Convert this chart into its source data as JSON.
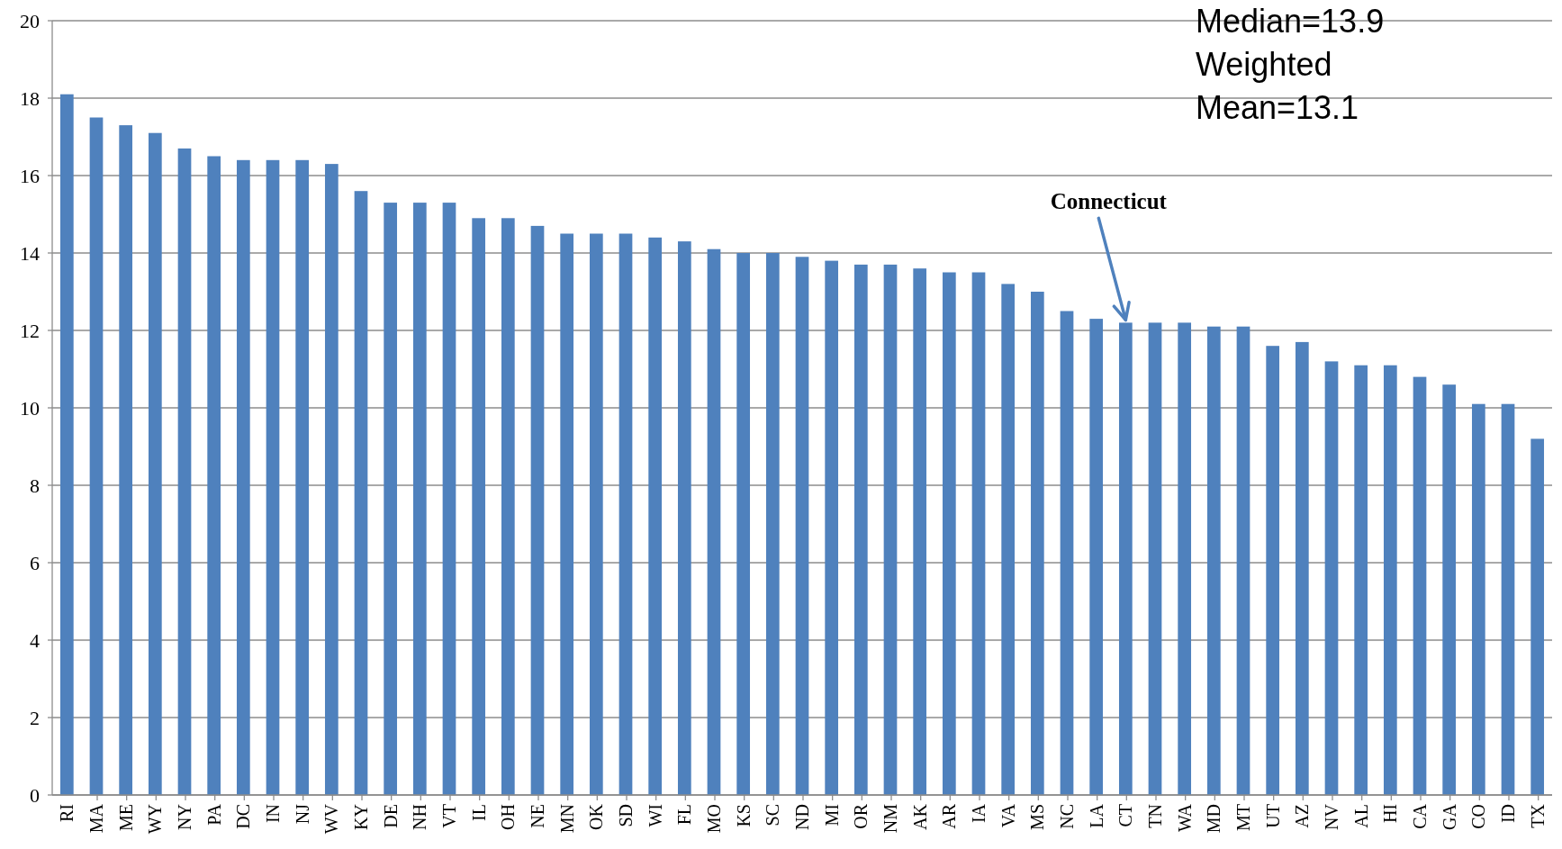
{
  "chart_data": {
    "type": "bar",
    "categories": [
      "RI",
      "MA",
      "ME",
      "WY",
      "NY",
      "PA",
      "DC",
      "IN",
      "NJ",
      "WV",
      "KY",
      "DE",
      "NH",
      "VT",
      "IL",
      "OH",
      "NE",
      "MN",
      "OK",
      "SD",
      "WI",
      "FL",
      "MO",
      "KS",
      "SC",
      "ND",
      "MI",
      "OR",
      "NM",
      "AK",
      "AR",
      "IA",
      "VA",
      "MS",
      "NC",
      "LA",
      "CT",
      "TN",
      "WA",
      "MD",
      "MT",
      "UT",
      "AZ",
      "NV",
      "AL",
      "HI",
      "CA",
      "GA",
      "CO",
      "ID",
      "TX"
    ],
    "values": [
      18.1,
      17.5,
      17.3,
      17.1,
      16.7,
      16.5,
      16.4,
      16.4,
      16.4,
      16.3,
      15.6,
      15.3,
      15.3,
      15.3,
      14.9,
      14.9,
      14.7,
      14.5,
      14.5,
      14.5,
      14.4,
      14.3,
      14.1,
      14.0,
      14.0,
      13.9,
      13.8,
      13.7,
      13.7,
      13.6,
      13.5,
      13.5,
      13.2,
      13.0,
      12.5,
      12.3,
      12.2,
      12.2,
      12.2,
      12.1,
      12.1,
      11.6,
      11.7,
      11.2,
      11.1,
      11.1,
      10.8,
      10.6,
      10.1,
      10.1,
      9.2
    ],
    "color": "#4f81bd",
    "ylim": [
      0,
      20
    ],
    "yticks": [
      0,
      2,
      4,
      6,
      8,
      10,
      12,
      14,
      16,
      18,
      20
    ],
    "grid": "y",
    "annotations": [
      {
        "text": "Connecticut",
        "x": "CT",
        "y": 12.2
      },
      "Median=13.9",
      "Weighted Mean=13.1"
    ]
  }
}
